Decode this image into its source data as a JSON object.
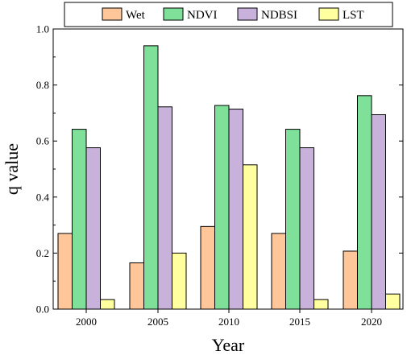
{
  "chart_data": {
    "type": "bar",
    "categories": [
      "2000",
      "2005",
      "2010",
      "2015",
      "2020"
    ],
    "series": [
      {
        "name": "Wet",
        "color": "#FFC69A",
        "values": [
          0.27,
          0.165,
          0.295,
          0.27,
          0.207
        ]
      },
      {
        "name": "NDVI",
        "color": "#7FE09A",
        "values": [
          0.642,
          0.94,
          0.727,
          0.642,
          0.762
        ]
      },
      {
        "name": "NDBSI",
        "color": "#C8B2DC",
        "values": [
          0.576,
          0.722,
          0.714,
          0.576,
          0.694
        ]
      },
      {
        "name": "LST",
        "color": "#FFFFA0",
        "values": [
          0.034,
          0.2,
          0.515,
          0.034,
          0.054
        ]
      }
    ],
    "xlabel": "Year",
    "ylabel": "q value",
    "ylim": [
      0,
      1.0
    ],
    "yticks": [
      "0.0",
      "0.2",
      "0.4",
      "0.6",
      "0.8",
      "1.0"
    ],
    "legend": "top",
    "grid": false
  }
}
